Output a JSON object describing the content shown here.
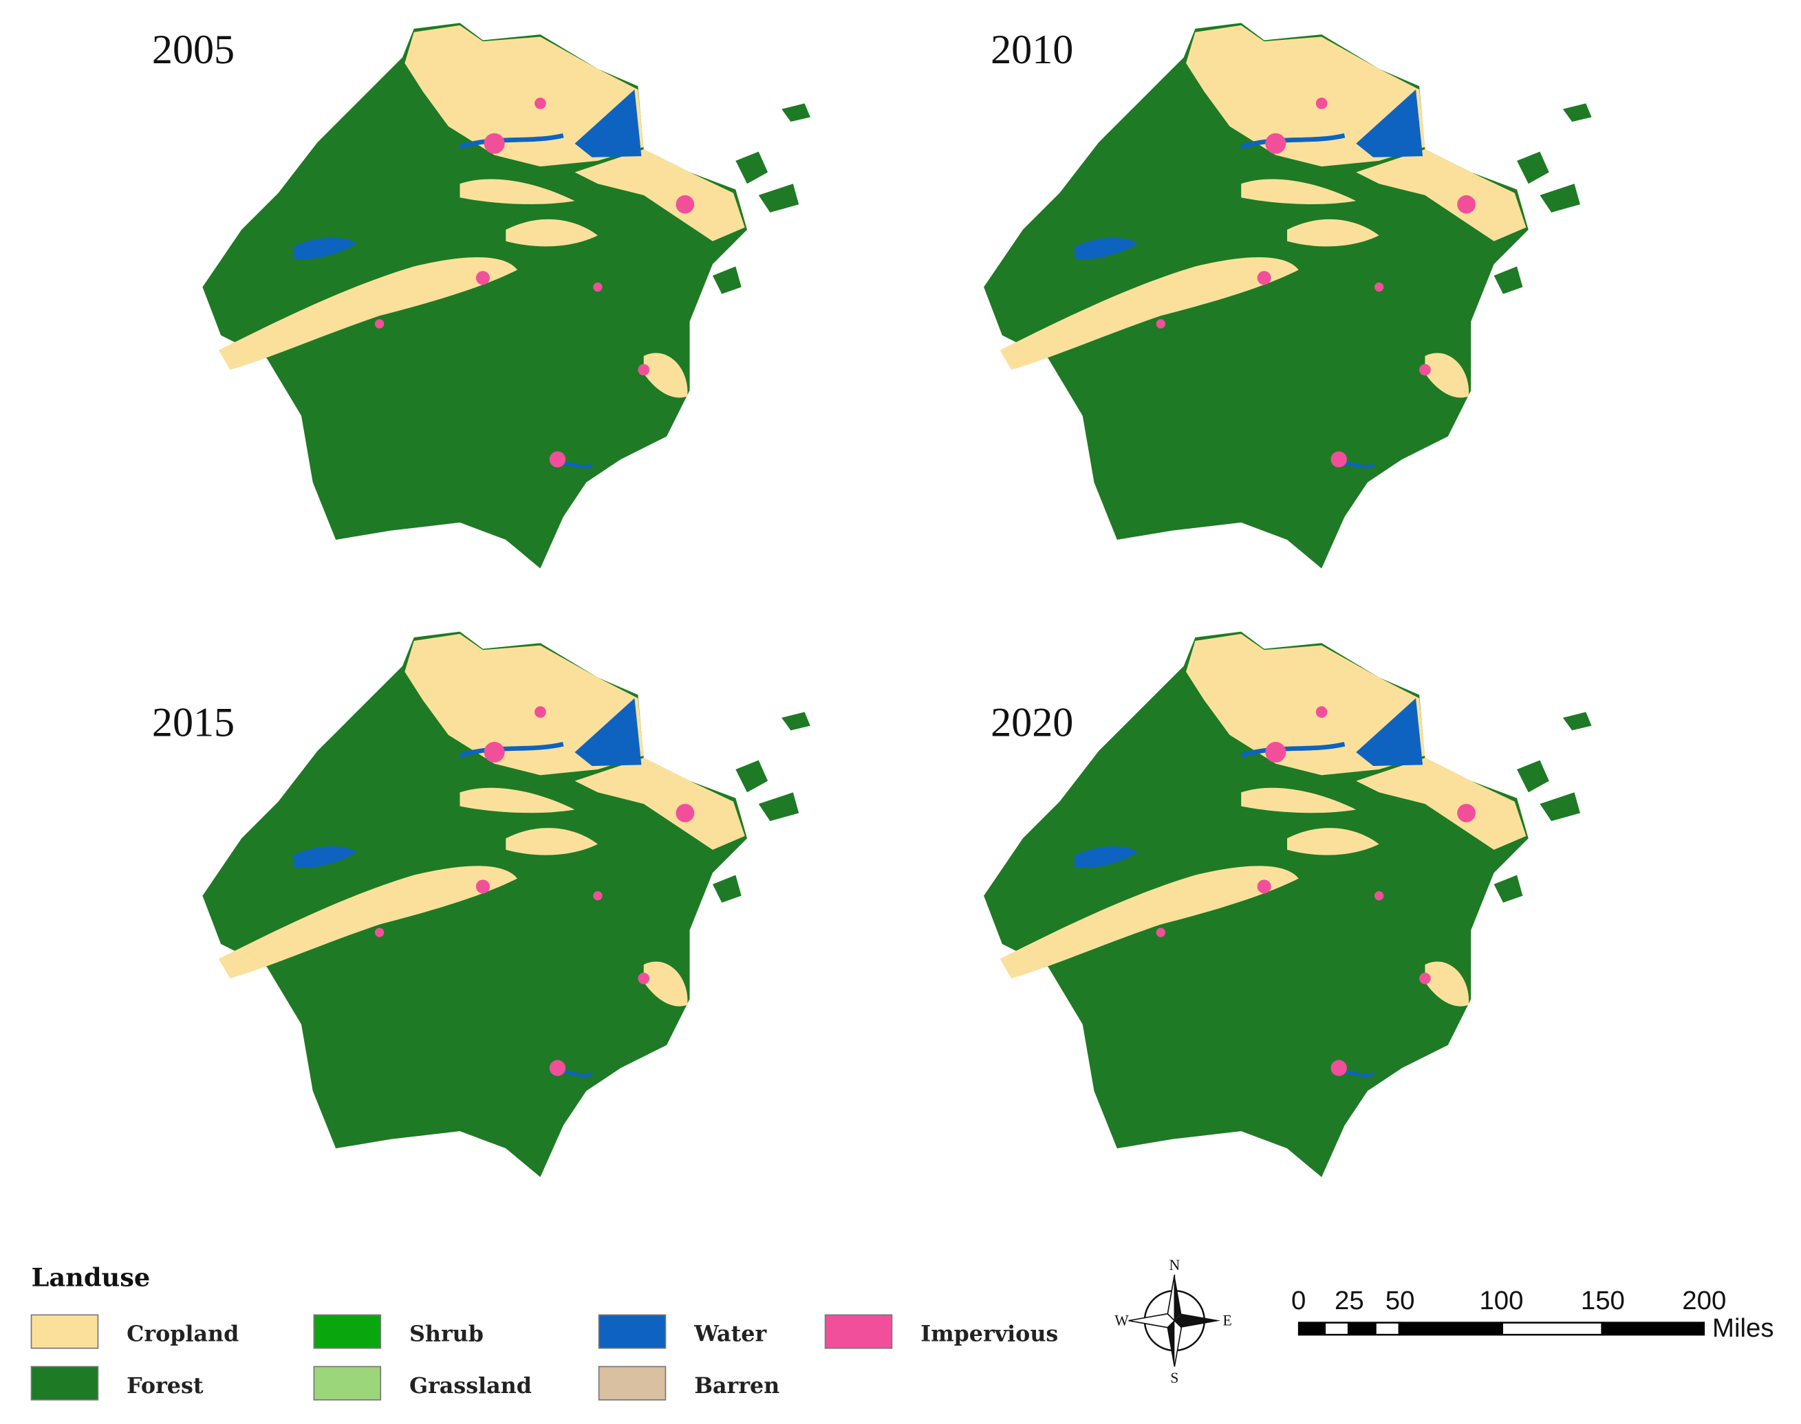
{
  "panels": [
    {
      "year": "2005"
    },
    {
      "year": "2010"
    },
    {
      "year": "2015"
    },
    {
      "year": "2020"
    }
  ],
  "legend": {
    "title": "Landuse",
    "items": [
      {
        "label": "Cropland",
        "color": "#fbe09b"
      },
      {
        "label": "Forest",
        "color": "#1e7a25"
      },
      {
        "label": "Shrub",
        "color": "#0aa60e"
      },
      {
        "label": "Grassland",
        "color": "#9bd67b"
      },
      {
        "label": "Water",
        "color": "#0e63c0"
      },
      {
        "label": "Barren",
        "color": "#d8c0a0"
      },
      {
        "label": "Impervious",
        "color": "#f24f9b"
      }
    ]
  },
  "compass": {
    "n": "N",
    "s": "S",
    "e": "E",
    "w": "W"
  },
  "scale_bar": {
    "ticks": [
      0,
      25,
      50,
      100,
      150,
      200
    ],
    "unit": "Miles"
  }
}
